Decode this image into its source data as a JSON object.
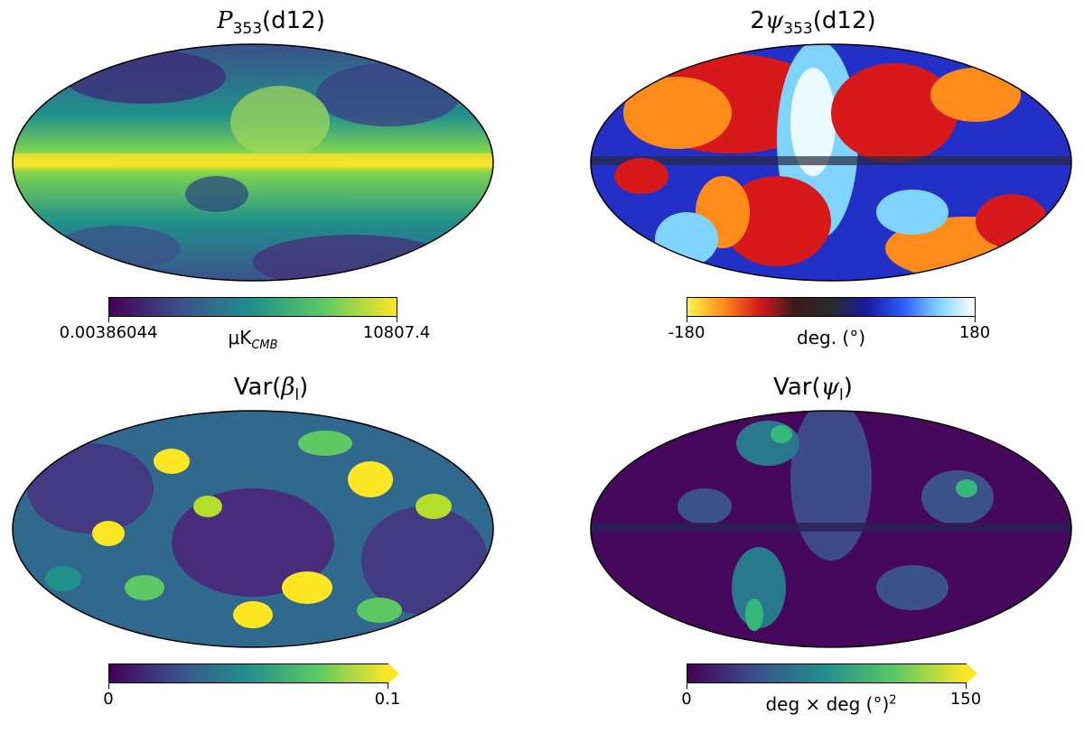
{
  "panels": [
    {
      "title_main": "P",
      "title_sub": "353",
      "title_suffix": "(d12)",
      "map_name": "polarized intensity map",
      "colormap": "viridis",
      "cbar": {
        "min_label": "0.00386044",
        "max_label": "10807.4",
        "unit_main": "μK",
        "unit_sub": "CMB",
        "extend": false
      }
    },
    {
      "title_prefix": "2",
      "title_main": "ψ",
      "title_sub": "353",
      "title_suffix": "(d12)",
      "map_name": "polarization angle map",
      "colormap": "twilight-diverging",
      "cbar": {
        "min_label": "-180",
        "max_label": "180",
        "unit_main": "deg. (°)",
        "extend": false
      }
    },
    {
      "title_prefix": "Var(",
      "title_main": "β",
      "title_sub": "l",
      "title_suffix": ")",
      "map_name": "beta variance map",
      "colormap": "viridis",
      "cbar": {
        "min_label": "0",
        "max_label": "0.1",
        "unit_main": "",
        "extend": true
      }
    },
    {
      "title_prefix": "Var(",
      "title_main": "ψ",
      "title_sub": "l",
      "title_suffix": ")",
      "map_name": "psi variance map",
      "colormap": "viridis",
      "cbar": {
        "min_label": "0",
        "max_label": "150",
        "unit_main": "deg × deg (°)",
        "unit_sup": "2",
        "extend": true
      }
    }
  ],
  "colors": {
    "viridis": [
      "#440154",
      "#3b528b",
      "#21918c",
      "#5ec962",
      "#fde725"
    ],
    "diverging": [
      "#fff44f",
      "#ff8c1a",
      "#d7191c",
      "#3a1a1a",
      "#2a2a2a",
      "#1a1aa0",
      "#2b5cff",
      "#7fd4ff",
      "#ffffff"
    ]
  }
}
